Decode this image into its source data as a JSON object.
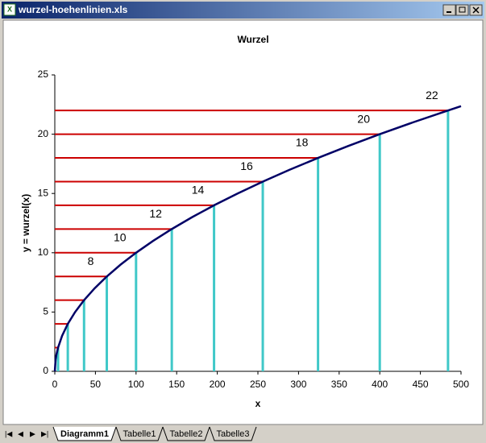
{
  "window": {
    "title": "wurzel-hoehenlinien.xls"
  },
  "sheet_tabs": [
    "Diagramm1",
    "Tabelle1",
    "Tabelle2",
    "Tabelle3"
  ],
  "active_tab": 0,
  "chart_data": {
    "type": "line",
    "title": "Wurzel",
    "x_label": "x",
    "y_label": "y = wurzel(x)",
    "x": [
      0,
      1,
      2,
      4,
      9,
      16,
      25,
      36,
      49,
      64,
      81,
      100,
      121,
      144,
      169,
      196,
      225,
      256,
      289,
      324,
      361,
      400,
      441,
      484,
      500
    ],
    "values": [
      0,
      1,
      1.414,
      2,
      3,
      4,
      5,
      6,
      7,
      8,
      9,
      10,
      11,
      12,
      13,
      14,
      15,
      16,
      17,
      18,
      19,
      20,
      21,
      22,
      22.36
    ],
    "color": "#000066",
    "levels": {
      "values": [
        2,
        4,
        6,
        8,
        10,
        12,
        14,
        16,
        18,
        20,
        22
      ],
      "x": [
        4,
        16,
        36,
        64,
        100,
        144,
        196,
        256,
        324,
        400,
        484
      ],
      "labeled": [
        false,
        false,
        false,
        true,
        true,
        true,
        true,
        true,
        true,
        true,
        true
      ],
      "h_color": "#cc0000",
      "v_color": "#40c8c8"
    },
    "xlim": [
      0,
      500
    ],
    "xticks": [
      0,
      50,
      100,
      150,
      200,
      250,
      300,
      350,
      400,
      450,
      500
    ],
    "ylim": [
      0,
      25
    ],
    "yticks": [
      0,
      5,
      10,
      15,
      20,
      25
    ]
  }
}
